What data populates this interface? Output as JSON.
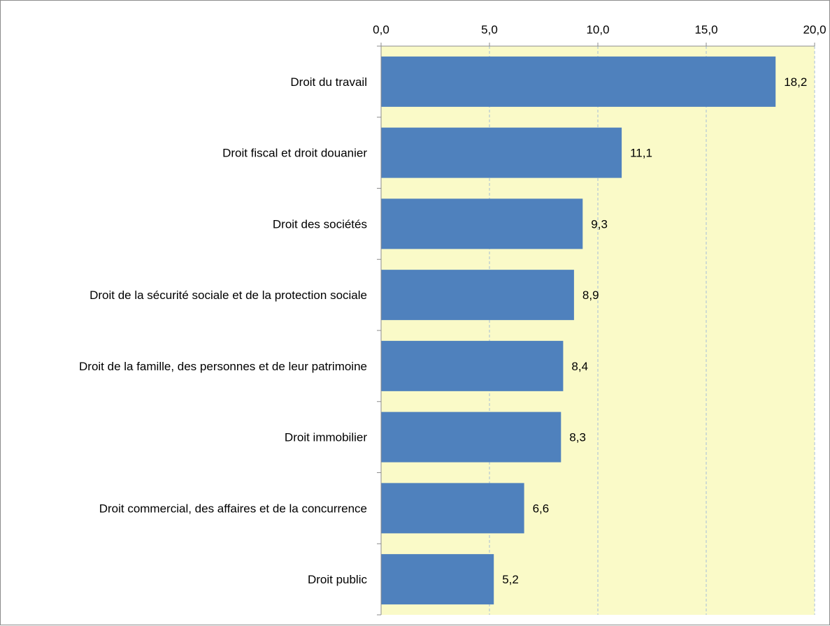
{
  "chart_data": {
    "type": "bar",
    "orientation": "horizontal",
    "title": "",
    "xlabel": "",
    "ylabel": "",
    "x_axis_position": "top",
    "xlim": [
      0,
      20
    ],
    "x_ticks": [
      0,
      5,
      10,
      15,
      20
    ],
    "x_tick_labels": [
      "0,0",
      "5,0",
      "10,0",
      "15,0",
      "20,0"
    ],
    "grid": true,
    "legend": "none",
    "categories": [
      "Droit du travail",
      "Droit fiscal et droit douanier",
      "Droit des sociétés",
      "Droit de la sécurité sociale et de la protection sociale",
      "Droit de la famille, des personnes et de leur patrimoine",
      "Droit immobilier",
      "Droit commercial, des affaires et de la concurrence",
      "Droit public"
    ],
    "values": [
      18.2,
      11.1,
      9.3,
      8.9,
      8.4,
      8.3,
      6.6,
      5.2
    ],
    "value_labels": [
      "18,2",
      "11,1",
      "9,3",
      "8,9",
      "8,4",
      "8,3",
      "6,6",
      "5,2"
    ],
    "colors": {
      "bar": "#4f81bd",
      "plot_background": "#fafac8",
      "gridline": "#a7bfd8",
      "axis": "#8c8c8c",
      "frame": "#8c8c8c"
    }
  }
}
